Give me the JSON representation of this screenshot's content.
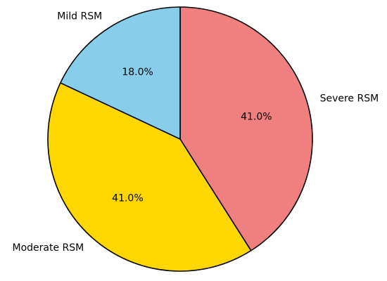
{
  "chart_data": {
    "type": "pie",
    "categories": [
      "Severe RSM",
      "Moderate RSM",
      "Mild RSM"
    ],
    "values": [
      41.0,
      41.0,
      18.0
    ],
    "percent_labels": [
      "41.0%",
      "41.0%",
      "18.0%"
    ],
    "colors": [
      "#F08080",
      "#FFD700",
      "#87CEEB"
    ],
    "start_angle_deg": 90,
    "direction": "clockwise",
    "edge_color": "#000000",
    "title": ""
  }
}
